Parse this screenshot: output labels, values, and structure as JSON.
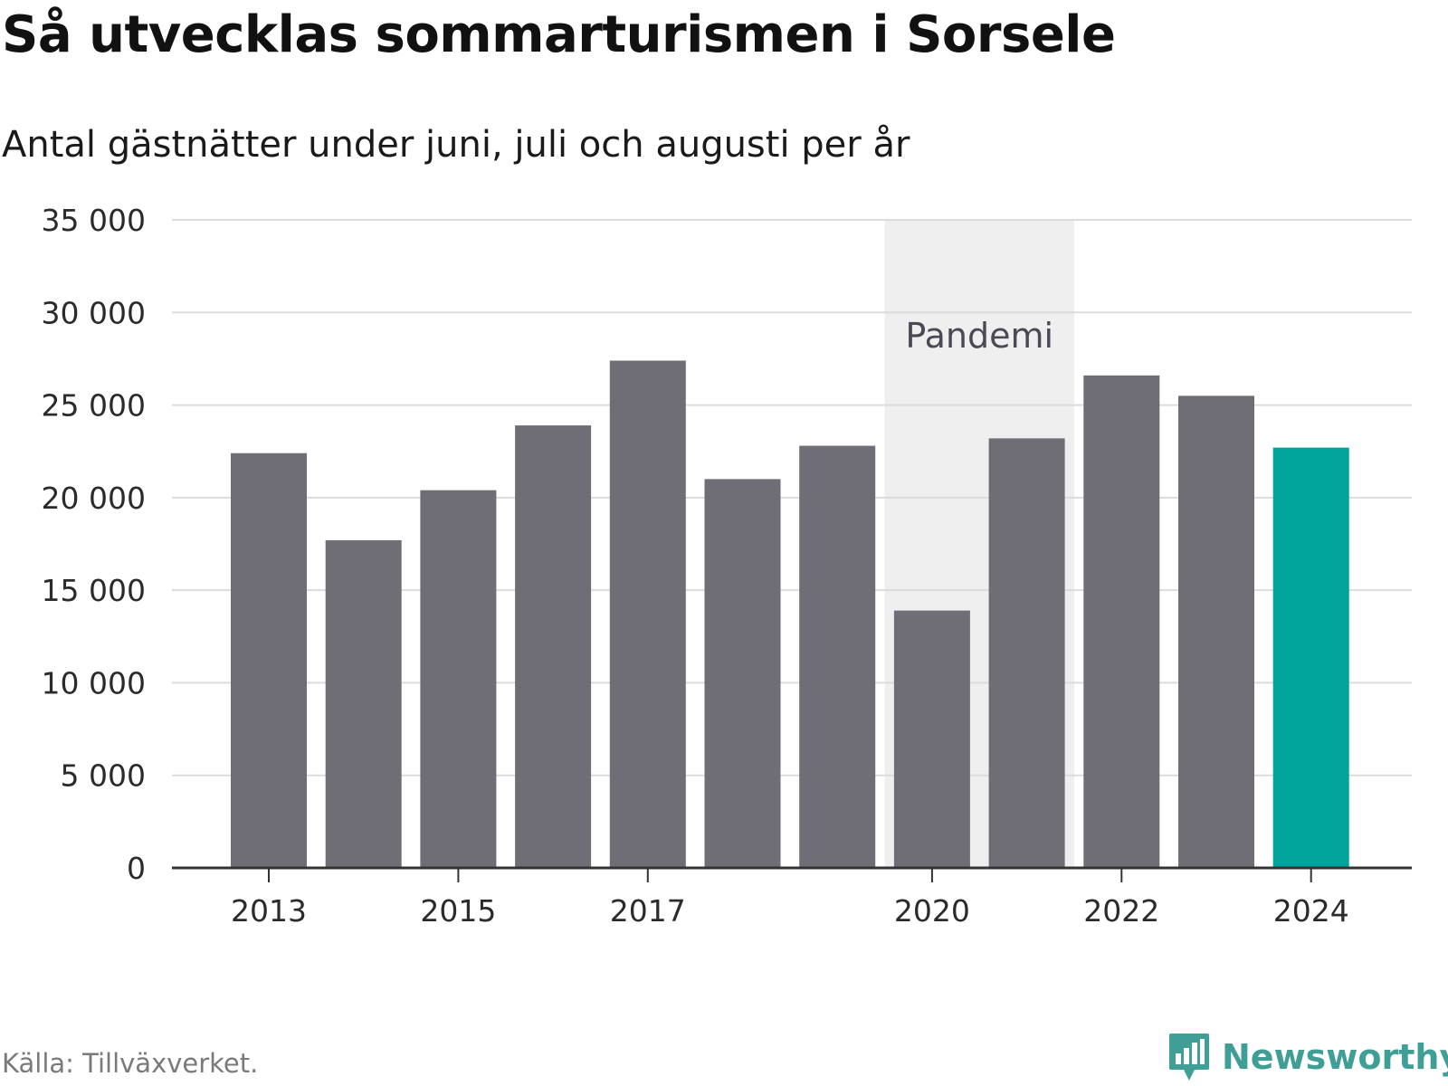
{
  "header": {
    "title": "Så utvecklas sommarturismen i Sorsele",
    "subtitle": "Antal gästnätter under juni, juli och augusti per år"
  },
  "footer": {
    "source": "Källa: Tillväxverket.",
    "brand": "Newsworthy",
    "brand_icon": "bar-chart-speech-bubble-icon"
  },
  "chart_data": {
    "type": "bar",
    "categories": [
      "2013",
      "2014",
      "2015",
      "2016",
      "2017",
      "2018",
      "2019",
      "2020",
      "2021",
      "2022",
      "2023",
      "2024"
    ],
    "values": [
      22400,
      17700,
      20400,
      23900,
      27400,
      21000,
      22800,
      13900,
      23200,
      26600,
      25500,
      22700
    ],
    "x_tick_labels": [
      "2013",
      "2015",
      "2017",
      "2020",
      "2022",
      "2024"
    ],
    "y_tick_labels": [
      "0",
      "5 000",
      "10 000",
      "15 000",
      "20 000",
      "25 000",
      "30 000",
      "35 000"
    ],
    "ylim": [
      0,
      35000
    ],
    "ytick_step": 5000,
    "grid": true,
    "highlight_category": "2024",
    "annotation": {
      "label": "Pandemi",
      "from": "2020",
      "to": "2021"
    },
    "colors": {
      "bar": "#6f6e76",
      "highlight": "#00a49a",
      "band": "#efefef",
      "grid": "#dcdcdc",
      "axis": "#333333"
    }
  }
}
